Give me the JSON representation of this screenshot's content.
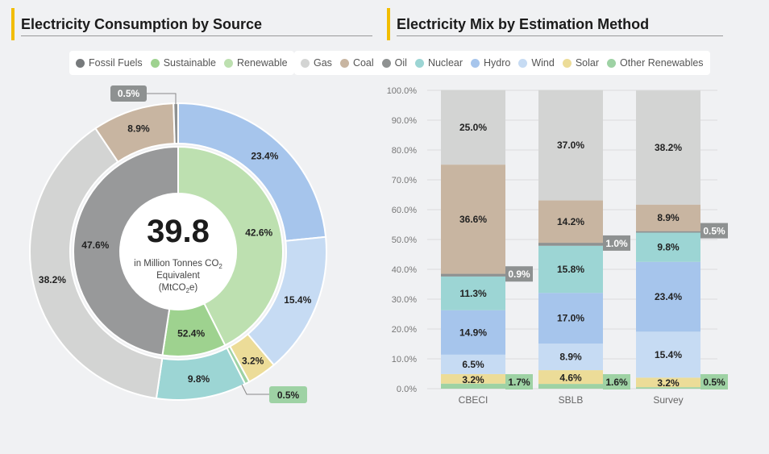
{
  "left": {
    "title": "Electricity Consumption by Source",
    "legend": [
      {
        "label": "Fossil Fuels",
        "color": "#777a7c"
      },
      {
        "label": "Sustainable",
        "color": "#9ed28f"
      },
      {
        "label": "Renewable",
        "color": "#bde0b0"
      }
    ],
    "center_value": "39.8",
    "center_caption_1": "in Million Tonnes CO",
    "center_caption_sub": "2",
    "center_caption_2": "Equivalent",
    "center_caption_3": "(MtCO",
    "center_caption_4": "e)"
  },
  "right": {
    "title": "Electricity Mix by Estimation Method",
    "legend": [
      {
        "label": "Gas",
        "color": "#d3d4d3"
      },
      {
        "label": "Coal",
        "color": "#c8b5a1"
      },
      {
        "label": "Oil",
        "color": "#8e9191"
      },
      {
        "label": "Nuclear",
        "color": "#9cd5d4"
      },
      {
        "label": "Hydro",
        "color": "#a6c5ec"
      },
      {
        "label": "Wind",
        "color": "#c6dbf3"
      },
      {
        "label": "Solar",
        "color": "#ecdc98"
      },
      {
        "label": "Other Renewables",
        "color": "#9ed2a4"
      }
    ]
  },
  "chart_data": [
    {
      "type": "pie",
      "subtype": "nested-donut",
      "inner": [
        {
          "name": "Renewable",
          "value": 42.6,
          "label": "42.6%",
          "color": "#bde0b0"
        },
        {
          "name": "Sustainable",
          "value": 9.8,
          "label": "52.4%",
          "color": "#9ed28f"
        },
        {
          "name": "Fossil Fuels",
          "value": 47.6,
          "label": "47.6%",
          "color": "#98999a"
        }
      ],
      "outer": [
        {
          "name": "Hydro",
          "value": 23.4,
          "label": "23.4%",
          "color": "#a6c5ec"
        },
        {
          "name": "Wind",
          "value": 15.4,
          "label": "15.4%",
          "color": "#c6dbf3"
        },
        {
          "name": "Solar",
          "value": 3.2,
          "label": "3.2%",
          "color": "#ecdc98"
        },
        {
          "name": "Other Renewables",
          "value": 0.5,
          "label": "0.5%",
          "color": "#9ed2a4"
        },
        {
          "name": "Nuclear",
          "value": 9.8,
          "label": "9.8%",
          "color": "#9cd5d4"
        },
        {
          "name": "Gas",
          "value": 38.2,
          "label": "38.2%",
          "color": "#d3d4d3"
        },
        {
          "name": "Coal",
          "value": 8.9,
          "label": "8.9%",
          "color": "#c8b5a1"
        },
        {
          "name": "Oil",
          "value": 0.5,
          "label": "0.5%",
          "color": "#8e9191"
        }
      ]
    },
    {
      "type": "bar",
      "stacked": true,
      "categories": [
        "CBECI",
        "SBLB",
        "Survey"
      ],
      "yticks": [
        "0.0%",
        "10.0%",
        "20.0%",
        "30.0%",
        "40.0%",
        "50.0%",
        "60.0%",
        "70.0%",
        "80.0%",
        "90.0%",
        "100.0%"
      ],
      "ylim": [
        0,
        100
      ],
      "grid": true,
      "series": [
        {
          "name": "Other Renewables",
          "values": [
            1.7,
            1.6,
            0.5
          ],
          "color": "#9ed2a4",
          "outside": true
        },
        {
          "name": "Solar",
          "values": [
            3.2,
            4.6,
            3.2
          ],
          "color": "#ecdc98"
        },
        {
          "name": "Wind",
          "values": [
            6.5,
            8.9,
            15.4
          ],
          "color": "#c6dbf3"
        },
        {
          "name": "Hydro",
          "values": [
            14.9,
            17.0,
            23.4
          ],
          "color": "#a6c5ec"
        },
        {
          "name": "Nuclear",
          "values": [
            11.3,
            15.8,
            9.8
          ],
          "color": "#9cd5d4"
        },
        {
          "name": "Oil",
          "values": [
            0.9,
            1.0,
            0.5
          ],
          "color": "#8e9191",
          "outside": true
        },
        {
          "name": "Coal",
          "values": [
            36.6,
            14.2,
            8.9
          ],
          "color": "#c8b5a1"
        },
        {
          "name": "Gas",
          "values": [
            25.0,
            37.0,
            38.2
          ],
          "color": "#d3d4d3"
        }
      ]
    }
  ]
}
